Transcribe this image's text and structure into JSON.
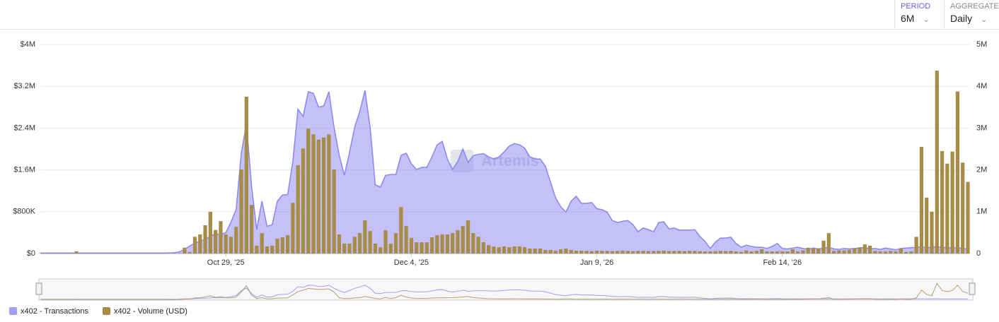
{
  "controls": {
    "period_label": "PERIOD",
    "period": "6M",
    "aggregate_label": "AGGREGATE",
    "aggregate": "Daily"
  },
  "chart_data": {
    "type": "combo",
    "watermark": "Artemis",
    "x": [
      "2025-09-23",
      "2025-09-24",
      "2025-09-25",
      "2025-09-26",
      "2025-09-27",
      "2025-09-28",
      "2025-09-29",
      "2025-09-30",
      "2025-10-01",
      "2025-10-02",
      "2025-10-03",
      "2025-10-04",
      "2025-10-05",
      "2025-10-06",
      "2025-10-07",
      "2025-10-08",
      "2025-10-09",
      "2025-10-10",
      "2025-10-11",
      "2025-10-12",
      "2025-10-13",
      "2025-10-14",
      "2025-10-15",
      "2025-10-16",
      "2025-10-17",
      "2025-10-18",
      "2025-10-19",
      "2025-10-20",
      "2025-10-21",
      "2025-10-22",
      "2025-10-23",
      "2025-10-24",
      "2025-10-25",
      "2025-10-26",
      "2025-10-27",
      "2025-10-28",
      "2025-10-29",
      "2025-10-30",
      "2025-10-31",
      "2025-11-01",
      "2025-11-02",
      "2025-11-03",
      "2025-11-04",
      "2025-11-05",
      "2025-11-06",
      "2025-11-07",
      "2025-11-08",
      "2025-11-09",
      "2025-11-10",
      "2025-11-11",
      "2025-11-12",
      "2025-11-13",
      "2025-11-14",
      "2025-11-15",
      "2025-11-16",
      "2025-11-17",
      "2025-11-18",
      "2025-11-19",
      "2025-11-20",
      "2025-11-21",
      "2025-11-22",
      "2025-11-23",
      "2025-11-24",
      "2025-11-25",
      "2025-11-26",
      "2025-11-27",
      "2025-11-28",
      "2025-11-29",
      "2025-11-30",
      "2025-12-01",
      "2025-12-02",
      "2025-12-03",
      "2025-12-04",
      "2025-12-05",
      "2025-12-06",
      "2025-12-07",
      "2025-12-08",
      "2025-12-09",
      "2025-12-10",
      "2025-12-11",
      "2025-12-12",
      "2025-12-13",
      "2025-12-14",
      "2025-12-15",
      "2025-12-16",
      "2025-12-17",
      "2025-12-18",
      "2025-12-19",
      "2025-12-20",
      "2025-12-21",
      "2025-12-22",
      "2025-12-23",
      "2025-12-24",
      "2025-12-25",
      "2025-12-26",
      "2025-12-27",
      "2025-12-28",
      "2025-12-29",
      "2025-12-30",
      "2025-12-31",
      "2026-01-01",
      "2026-01-02",
      "2026-01-03",
      "2026-01-04",
      "2026-01-05",
      "2026-01-06",
      "2026-01-07",
      "2026-01-08",
      "2026-01-09",
      "2026-01-10",
      "2026-01-11",
      "2026-01-12",
      "2026-01-13",
      "2026-01-14",
      "2026-01-15",
      "2026-01-16",
      "2026-01-17",
      "2026-01-18",
      "2026-01-19",
      "2026-01-20",
      "2026-01-21",
      "2026-01-22",
      "2026-01-23",
      "2026-01-24",
      "2026-01-25",
      "2026-01-26",
      "2026-01-27",
      "2026-01-28",
      "2026-01-29",
      "2026-01-30",
      "2026-01-31",
      "2026-02-01",
      "2026-02-02",
      "2026-02-03",
      "2026-02-04",
      "2026-02-05",
      "2026-02-06",
      "2026-02-07",
      "2026-02-08",
      "2026-02-09",
      "2026-02-10",
      "2026-02-11",
      "2026-02-12",
      "2026-02-13",
      "2026-02-14",
      "2026-02-15",
      "2026-02-16",
      "2026-02-17",
      "2026-02-18",
      "2026-02-19",
      "2026-02-20",
      "2026-02-21",
      "2026-02-22",
      "2026-02-23",
      "2026-02-24",
      "2026-02-25",
      "2026-02-26",
      "2026-02-27",
      "2026-02-28",
      "2026-03-01",
      "2026-03-02",
      "2026-03-03",
      "2026-03-04",
      "2026-03-05",
      "2026-03-06",
      "2026-03-07",
      "2026-03-08",
      "2026-03-09",
      "2026-03-10",
      "2026-03-11",
      "2026-03-12",
      "2026-03-13",
      "2026-03-14",
      "2026-03-15",
      "2026-03-16",
      "2026-03-17",
      "2026-03-18",
      "2026-03-19",
      "2026-03-20",
      "2026-03-21",
      "2026-03-22"
    ],
    "xlim": [
      "2025-09-23",
      "2026-03-22"
    ],
    "xticks": [
      {
        "value": "2025-10-29",
        "label": "Oct 29, '25"
      },
      {
        "value": "2025-12-04",
        "label": "Dec 4, '25"
      },
      {
        "value": "2026-01-09",
        "label": "Jan 9, '26"
      },
      {
        "value": "2026-02-14",
        "label": "Feb 14, '26"
      }
    ],
    "ylim": [
      0,
      4000000
    ],
    "yticks": [
      {
        "value": 0,
        "label": "$0"
      },
      {
        "value": 800000,
        "label": "$800K"
      },
      {
        "value": 1600000,
        "label": "$1.6M"
      },
      {
        "value": 2400000,
        "label": "$2.4M"
      },
      {
        "value": 3200000,
        "label": "$3.2M"
      },
      {
        "value": 4000000,
        "label": "$4M"
      }
    ],
    "y2lim": [
      0,
      5000000
    ],
    "y2ticks": [
      0,
      {
        "value": 1000000,
        "label": "1M"
      },
      {
        "value": 2000000,
        "label": "2M"
      },
      {
        "value": 3000000,
        "label": "3M"
      },
      {
        "value": 4000000,
        "label": "4M"
      },
      {
        "value": 5000000,
        "label": "5M"
      }
    ],
    "grid": true,
    "series": [
      {
        "name": "x402 - Transactions",
        "type": "area",
        "axis": "y2",
        "color": "#8b84f2",
        "values": [
          10000,
          10000,
          10000,
          10000,
          10000,
          10000,
          10000,
          10000,
          10000,
          10000,
          10000,
          10000,
          10000,
          10000,
          10000,
          10000,
          10000,
          10000,
          10000,
          10000,
          10000,
          10000,
          10000,
          10000,
          10000,
          15000,
          20000,
          40000,
          100000,
          180000,
          250000,
          300000,
          330000,
          420000,
          470000,
          450000,
          500000,
          750000,
          1050000,
          2400000,
          3100000,
          1600000,
          570000,
          1250000,
          650000,
          690000,
          1250000,
          1400000,
          1410000,
          2200000,
          3450000,
          3280000,
          3870000,
          3830000,
          3500000,
          3530000,
          3870000,
          3020000,
          2350000,
          1870000,
          2420000,
          3020000,
          3400000,
          3900000,
          3020000,
          1640000,
          1590000,
          1870000,
          1890000,
          1890000,
          2350000,
          2400000,
          2150000,
          2010000,
          2060000,
          2060000,
          2310000,
          2600000,
          2680000,
          2260000,
          2010000,
          2200000,
          2500000,
          2180000,
          2340000,
          2370000,
          2390000,
          2310000,
          2260000,
          2310000,
          2430000,
          2570000,
          2630000,
          2600000,
          2520000,
          2310000,
          2260000,
          2260000,
          2090000,
          1710000,
          1330000,
          1120000,
          990000,
          1250000,
          1370000,
          1200000,
          1200000,
          1220000,
          1070000,
          1050000,
          990000,
          790000,
          740000,
          770000,
          790000,
          690000,
          520000,
          610000,
          570000,
          520000,
          740000,
          760000,
          590000,
          610000,
          560000,
          560000,
          560000,
          570000,
          410000,
          290000,
          120000,
          270000,
          370000,
          370000,
          390000,
          240000,
          150000,
          200000,
          170000,
          150000,
          150000,
          120000,
          170000,
          240000,
          120000,
          110000,
          130000,
          150000,
          120000,
          100000,
          130000,
          110000,
          130000,
          150000,
          110000,
          100000,
          120000,
          110000,
          120000,
          130000,
          140000,
          110000,
          120000,
          100000,
          130000,
          110000,
          90000,
          120000,
          130000,
          140000,
          150000,
          160000,
          140000,
          150000,
          160000,
          150000,
          140000,
          130000,
          140000,
          120000,
          110000
        ]
      },
      {
        "name": "x402 - Volume (USD)",
        "type": "bar",
        "axis": "y",
        "color": "#a68c47",
        "values": [
          5000,
          5000,
          5000,
          5000,
          5000,
          5000,
          5000,
          40000,
          5000,
          5000,
          5000,
          5000,
          5000,
          5000,
          5000,
          5000,
          5000,
          5000,
          5000,
          5000,
          5000,
          5000,
          5000,
          5000,
          5000,
          5000,
          5000,
          5000,
          110000,
          30000,
          320000,
          365000,
          540000,
          800000,
          450000,
          620000,
          365000,
          320000,
          510000,
          1610000,
          3000000,
          930000,
          150000,
          390000,
          135000,
          150000,
          285000,
          310000,
          350000,
          970000,
          1690000,
          2010000,
          2390000,
          2280000,
          2180000,
          2220000,
          2280000,
          1610000,
          365000,
          190000,
          190000,
          320000,
          390000,
          635000,
          430000,
          190000,
          120000,
          445000,
          190000,
          390000,
          890000,
          525000,
          300000,
          215000,
          215000,
          215000,
          310000,
          350000,
          365000,
          365000,
          390000,
          445000,
          525000,
          635000,
          390000,
          320000,
          215000,
          160000,
          135000,
          120000,
          135000,
          120000,
          135000,
          135000,
          120000,
          95000,
          95000,
          95000,
          68000,
          68000,
          54000,
          80000,
          95000,
          68000,
          54000,
          54000,
          50000,
          45000,
          55000,
          50000,
          50000,
          45000,
          50000,
          55000,
          50000,
          45000,
          50000,
          50000,
          45000,
          50000,
          50000,
          55000,
          45000,
          50000,
          50000,
          45000,
          50000,
          50000,
          45000,
          40000,
          40000,
          45000,
          50000,
          45000,
          50000,
          40000,
          30000,
          60000,
          40000,
          50000,
          80000,
          40000,
          40000,
          40000,
          40000,
          40000,
          80000,
          40000,
          60000,
          110000,
          95000,
          95000,
          245000,
          390000,
          50000,
          60000,
          60000,
          70000,
          95000,
          120000,
          175000,
          150000,
          50000,
          40000,
          40000,
          50000,
          40000,
          95000,
          30000,
          40000,
          320000,
          2040000,
          1070000,
          800000,
          3500000,
          1960000,
          1720000,
          1950000,
          3100000,
          1740000,
          1370000
        ]
      }
    ]
  }
}
